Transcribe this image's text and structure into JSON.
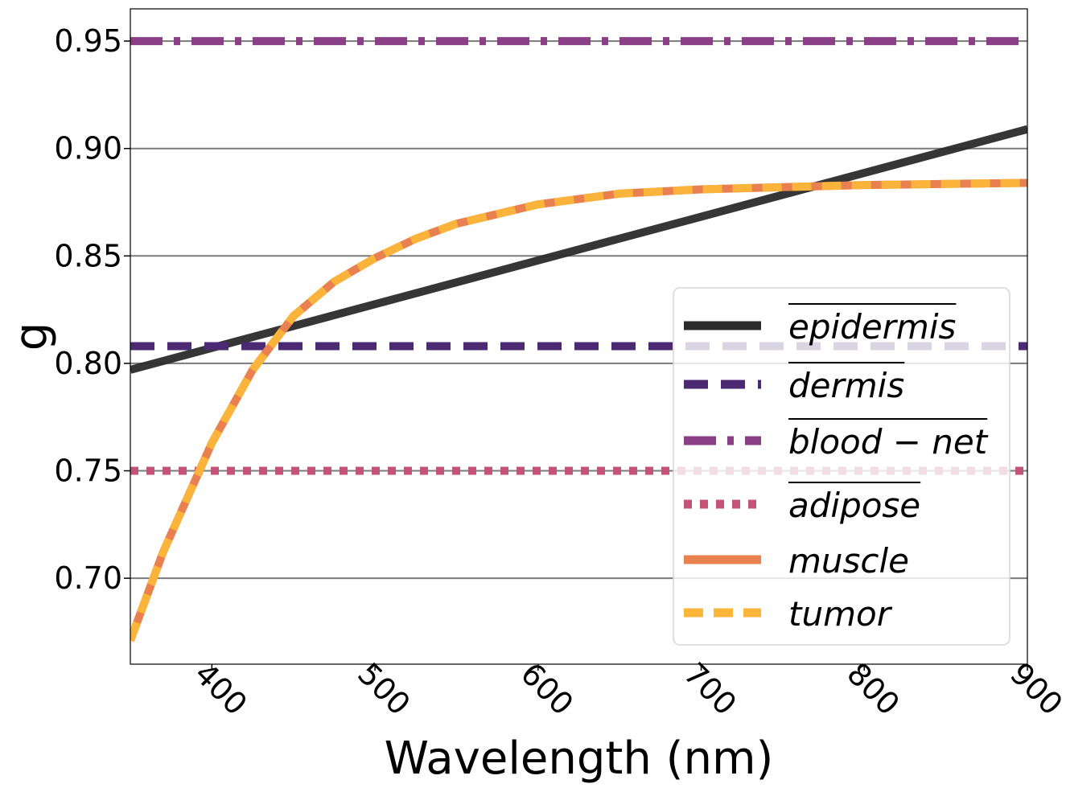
{
  "chart_data": {
    "type": "line",
    "title": "",
    "xlabel": "Wavelength (nm)",
    "ylabel": "g",
    "xlim": [
      350,
      900
    ],
    "ylim": [
      0.66,
      0.965
    ],
    "xticks": [
      400,
      500,
      600,
      700,
      800,
      900
    ],
    "xtick_labels": [
      "400",
      "500",
      "600",
      "700",
      "800",
      "900"
    ],
    "yticks": [
      0.7,
      0.75,
      0.8,
      0.85,
      0.9,
      0.95
    ],
    "ytick_labels": [
      "0.70",
      "0.75",
      "0.80",
      "0.85",
      "0.90",
      "0.95"
    ],
    "grid": "horizontal",
    "legend_position": "lower-right",
    "series": [
      {
        "name": "epidermis",
        "overline": true,
        "style": "solid",
        "color": "#2b2b2b",
        "x": [
          350,
          900
        ],
        "y": [
          0.797,
          0.909
        ]
      },
      {
        "name": "dermis",
        "overline": true,
        "style": "dashed",
        "color": "#4b2a73",
        "x": [
          350,
          900
        ],
        "y": [
          0.808,
          0.808
        ]
      },
      {
        "name": "blood − net",
        "overline": true,
        "style": "dashdot",
        "color": "#8b3f86",
        "x": [
          350,
          900
        ],
        "y": [
          0.95,
          0.95
        ]
      },
      {
        "name": "adipose",
        "overline": true,
        "style": "dotted",
        "color": "#c35478",
        "x": [
          350,
          900
        ],
        "y": [
          0.75,
          0.75
        ]
      },
      {
        "name": "muscle",
        "overline": false,
        "style": "solid",
        "color": "#e9804f",
        "x": [
          350,
          370,
          400,
          425,
          450,
          475,
          500,
          525,
          550,
          600,
          650,
          700,
          750,
          800,
          850,
          900
        ],
        "y": [
          0.671,
          0.712,
          0.763,
          0.797,
          0.822,
          0.838,
          0.849,
          0.858,
          0.865,
          0.874,
          0.879,
          0.881,
          0.882,
          0.883,
          0.8835,
          0.884
        ]
      },
      {
        "name": "tumor",
        "overline": false,
        "style": "dashed",
        "color": "#fbb63a",
        "x": [
          350,
          370,
          400,
          425,
          450,
          475,
          500,
          525,
          550,
          600,
          650,
          700,
          750,
          800,
          850,
          900
        ],
        "y": [
          0.671,
          0.712,
          0.763,
          0.797,
          0.822,
          0.838,
          0.849,
          0.858,
          0.865,
          0.874,
          0.879,
          0.881,
          0.882,
          0.883,
          0.8835,
          0.884
        ]
      }
    ]
  }
}
